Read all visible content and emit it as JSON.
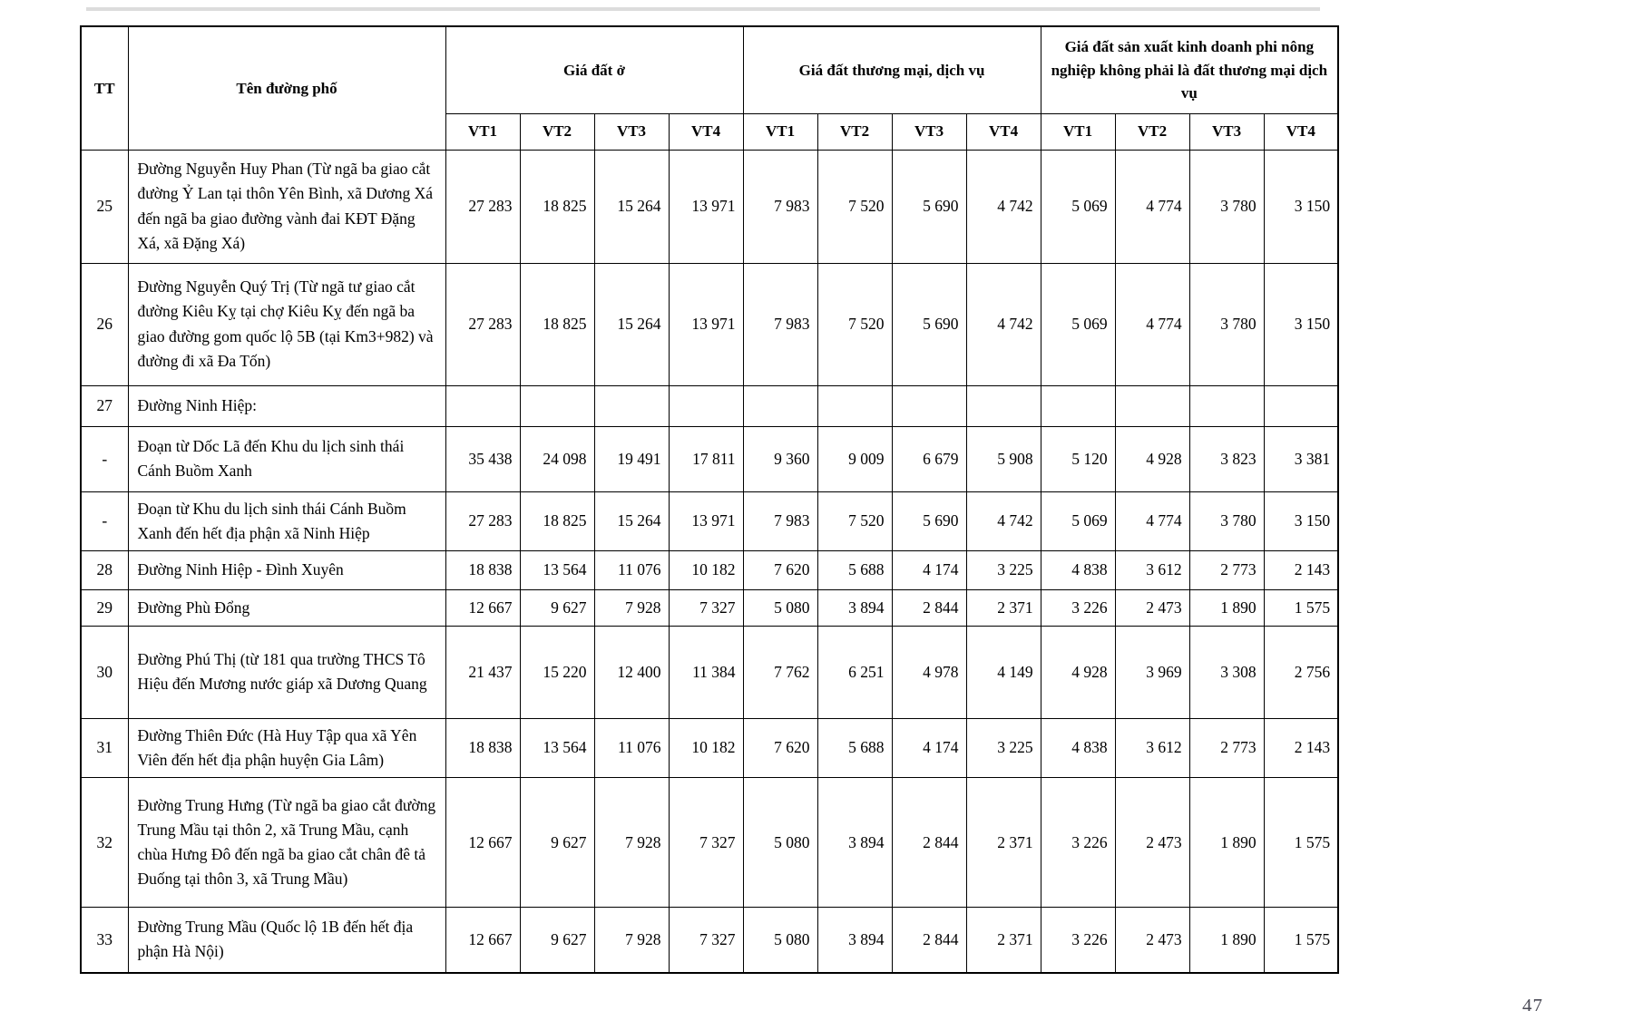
{
  "page": {
    "page_number": "47"
  },
  "table": {
    "header": {
      "tt": "TT",
      "street": "Tên đường phố",
      "groups": [
        {
          "label": "Giá đất ở"
        },
        {
          "label": "Giá đất thương mại, dịch vụ"
        },
        {
          "label": "Giá đất sản xuất kinh doanh phi nông nghiệp không phải là đất thương mại dịch vụ"
        }
      ],
      "subcols": [
        "VT1",
        "VT2",
        "VT3",
        "VT4"
      ]
    },
    "rows": [
      {
        "tt": "25",
        "name": "Đường Nguyễn Huy Phan (Từ ngã ba giao cắt đường Ỷ Lan tại thôn Yên Bình, xã Dương Xá đến ngã ba giao đường vành đai KĐT Đặng Xá, xã Đặng Xá)",
        "values": [
          "27 283",
          "18 825",
          "15 264",
          "13 971",
          "7 983",
          "7 520",
          "5 690",
          "4 742",
          "5 069",
          "4 774",
          "3 780",
          "3 150"
        ]
      },
      {
        "tt": "26",
        "name": "Đường Nguyễn Quý Trị (Từ ngã tư giao cắt đường Kiêu Kỵ tại chợ Kiêu Kỵ đến ngã ba giao đường gom quốc lộ 5B (tại Km3+982) và đường đi xã Đa Tốn)",
        "values": [
          "27 283",
          "18 825",
          "15 264",
          "13 971",
          "7 983",
          "7 520",
          "5 690",
          "4 742",
          "5 069",
          "4 774",
          "3 780",
          "3 150"
        ]
      },
      {
        "tt": "27",
        "name": "Đường Ninh Hiệp:",
        "values": [
          "",
          "",
          "",
          "",
          "",
          "",
          "",
          "",
          "",
          "",
          "",
          ""
        ]
      },
      {
        "tt": "-",
        "name": "Đoạn từ Dốc Lã đến Khu du lịch sinh thái Cánh Buồm Xanh",
        "values": [
          "35 438",
          "24 098",
          "19 491",
          "17 811",
          "9 360",
          "9 009",
          "6 679",
          "5 908",
          "5 120",
          "4 928",
          "3 823",
          "3 381"
        ]
      },
      {
        "tt": "-",
        "name": "Đoạn từ Khu du lịch sinh thái Cánh Buồm Xanh đến hết địa phận xã Ninh Hiệp",
        "values": [
          "27 283",
          "18 825",
          "15 264",
          "13 971",
          "7 983",
          "7 520",
          "5 690",
          "4 742",
          "5 069",
          "4 774",
          "3 780",
          "3 150"
        ]
      },
      {
        "tt": "28",
        "name": "Đường Ninh Hiệp - Đình Xuyên",
        "values": [
          "18 838",
          "13 564",
          "11 076",
          "10 182",
          "7 620",
          "5 688",
          "4 174",
          "3 225",
          "4 838",
          "3 612",
          "2 773",
          "2 143"
        ]
      },
      {
        "tt": "29",
        "name": "Đường Phù Đổng",
        "values": [
          "12 667",
          "9 627",
          "7 928",
          "7 327",
          "5 080",
          "3 894",
          "2 844",
          "2 371",
          "3 226",
          "2 473",
          "1 890",
          "1 575"
        ]
      },
      {
        "tt": "30",
        "name": "Đường Phú Thị (từ 181 qua trường THCS Tô Hiệu đến Mương nước giáp xã Dương Quang",
        "values": [
          "21 437",
          "15 220",
          "12 400",
          "11 384",
          "7 762",
          "6 251",
          "4 978",
          "4 149",
          "4 928",
          "3 969",
          "3 308",
          "2 756"
        ]
      },
      {
        "tt": "31",
        "name": "Đường Thiên Đức (Hà Huy Tập qua xã Yên Viên đến hết địa phận huyện Gia Lâm)",
        "values": [
          "18 838",
          "13 564",
          "11 076",
          "10 182",
          "7 620",
          "5 688",
          "4 174",
          "3 225",
          "4 838",
          "3 612",
          "2 773",
          "2 143"
        ]
      },
      {
        "tt": "32",
        "name": "Đường Trung Hưng (Từ ngã ba giao cắt đường Trung Mầu tại thôn 2, xã Trung Mầu, cạnh chùa Hưng Đô đến ngã ba giao cắt chân đê tả Đuống tại thôn 3, xã Trung Mầu)",
        "values": [
          "12 667",
          "9 627",
          "7 928",
          "7 327",
          "5 080",
          "3 894",
          "2 844",
          "2 371",
          "3 226",
          "2 473",
          "1 890",
          "1 575"
        ]
      },
      {
        "tt": "33",
        "name": "Đường Trung Mầu (Quốc lộ 1B đến hết địa phận Hà Nội)",
        "values": [
          "12 667",
          "9 627",
          "7 928",
          "7 327",
          "5 080",
          "3 894",
          "2 844",
          "2 371",
          "3 226",
          "2 473",
          "1 890",
          "1 575"
        ]
      }
    ]
  }
}
